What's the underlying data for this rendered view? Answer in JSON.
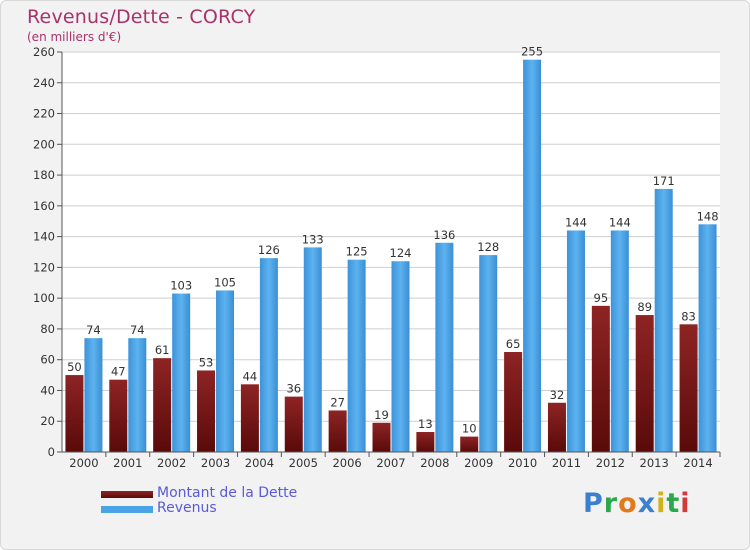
{
  "header": {
    "title": "Revenus/Dette - CORCY",
    "subtitle": "(en milliers d'€)"
  },
  "chart_data": {
    "type": "bar",
    "categories": [
      "2000",
      "2001",
      "2002",
      "2003",
      "2004",
      "2005",
      "2006",
      "2007",
      "2008",
      "2009",
      "2010",
      "2011",
      "2012",
      "2013",
      "2014"
    ],
    "series": [
      {
        "name": "Montant de la Dette",
        "color": "#7a1616",
        "values": [
          50,
          47,
          61,
          53,
          44,
          36,
          27,
          19,
          13,
          10,
          65,
          32,
          95,
          89,
          83
        ]
      },
      {
        "name": "Revenus",
        "color": "#4aa3e6",
        "values": [
          74,
          74,
          103,
          105,
          126,
          133,
          125,
          124,
          136,
          128,
          255,
          144,
          144,
          171,
          148
        ]
      }
    ],
    "ylim": [
      0,
      260
    ],
    "yticks": [
      0,
      20,
      40,
      60,
      80,
      100,
      120,
      140,
      160,
      180,
      200,
      220,
      240,
      260
    ],
    "grid": true,
    "legend_position": "bottom-left"
  },
  "logo": {
    "letters": [
      {
        "char": "P",
        "color": "#3a7fd0"
      },
      {
        "char": "r",
        "color": "#2aa84a"
      },
      {
        "char": "o",
        "color": "#e07a1a"
      },
      {
        "char": "x",
        "color": "#3a7fd0"
      },
      {
        "char": "i",
        "color": "#d2b21a"
      },
      {
        "char": "t",
        "color": "#2aa84a"
      },
      {
        "char": "i",
        "color": "#d23a3a"
      }
    ]
  }
}
